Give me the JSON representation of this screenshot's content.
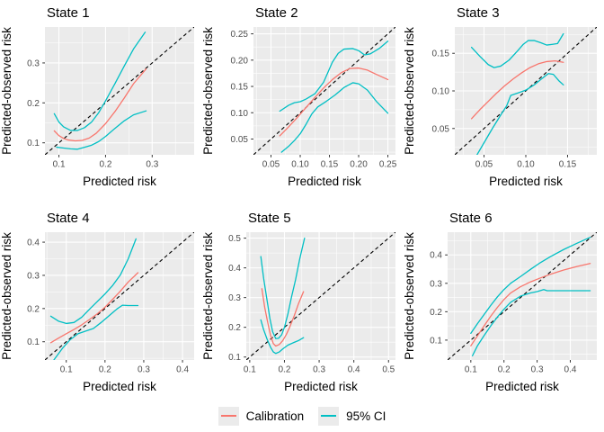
{
  "figure": {
    "panel_background": "#EBEBEB",
    "grid_color": "#FFFFFF",
    "tick_label_color": "#4D4D4D",
    "text_color": "#000000",
    "reference_line": {
      "meaning": "identity y = x",
      "color": "#000000",
      "style": "dashed"
    }
  },
  "legend": {
    "key_background": "#EBEBEB",
    "items": [
      {
        "label": "Calibration",
        "color": "#F8766D"
      },
      {
        "label": "95% CI",
        "color": "#00BFC4"
      }
    ]
  },
  "chart_data": [
    {
      "type": "line",
      "title": "State 1",
      "xlabel": "Predicted risk",
      "ylabel": "Predicted-observed risk",
      "xlim": [
        0.07,
        0.39
      ],
      "ylim": [
        0.07,
        0.39
      ],
      "xticks": [
        0.1,
        0.2,
        0.3
      ],
      "xtick_labels": [
        "0.1",
        "0.2",
        "0.3"
      ],
      "yticks": [
        0.1,
        0.2,
        0.3
      ],
      "ytick_labels": [
        "0.1",
        "0.2",
        "0.3"
      ],
      "identity_line": true,
      "series": [
        {
          "name": "Calibration",
          "color": "#F8766D",
          "x": [
            0.09,
            0.1,
            0.11,
            0.12,
            0.135,
            0.15,
            0.165,
            0.18,
            0.2,
            0.22,
            0.24,
            0.26,
            0.287
          ],
          "y": [
            0.13,
            0.118,
            0.111,
            0.107,
            0.105,
            0.106,
            0.112,
            0.124,
            0.148,
            0.178,
            0.212,
            0.248,
            0.285
          ]
        },
        {
          "name": "95% CI upper",
          "color": "#00BFC4",
          "x": [
            0.09,
            0.1,
            0.11,
            0.125,
            0.14,
            0.155,
            0.17,
            0.185,
            0.2,
            0.22,
            0.24,
            0.26,
            0.285
          ],
          "y": [
            0.173,
            0.152,
            0.14,
            0.131,
            0.131,
            0.138,
            0.152,
            0.175,
            0.205,
            0.248,
            0.292,
            0.335,
            0.377
          ]
        },
        {
          "name": "95% CI lower",
          "color": "#00BFC4",
          "x": [
            0.095,
            0.11,
            0.125,
            0.14,
            0.155,
            0.17,
            0.185,
            0.2,
            0.22,
            0.24,
            0.26,
            0.287
          ],
          "y": [
            0.089,
            0.087,
            0.085,
            0.084,
            0.089,
            0.094,
            0.103,
            0.116,
            0.136,
            0.155,
            0.17,
            0.18
          ]
        }
      ]
    },
    {
      "type": "line",
      "title": "State 2",
      "xlabel": "Predicted risk",
      "ylabel": "Predicted-observed risk",
      "xlim": [
        0.02,
        0.263
      ],
      "ylim": [
        0.02,
        0.263
      ],
      "xticks": [
        0.05,
        0.1,
        0.15,
        0.2,
        0.25
      ],
      "xtick_labels": [
        "0.05",
        "0.10",
        "0.15",
        "0.20",
        "0.25"
      ],
      "yticks": [
        0.05,
        0.1,
        0.15,
        0.2,
        0.25
      ],
      "ytick_labels": [
        "0.05",
        "0.10",
        "0.15",
        "0.20",
        "0.25"
      ],
      "identity_line": true,
      "series": [
        {
          "name": "Calibration",
          "color": "#F8766D",
          "x": [
            0.065,
            0.08,
            0.095,
            0.11,
            0.125,
            0.14,
            0.155,
            0.17,
            0.185,
            0.2,
            0.215,
            0.23,
            0.25
          ],
          "y": [
            0.056,
            0.073,
            0.091,
            0.11,
            0.129,
            0.147,
            0.163,
            0.176,
            0.184,
            0.185,
            0.181,
            0.173,
            0.163
          ]
        },
        {
          "name": "95% CI upper",
          "color": "#00BFC4",
          "x": [
            0.065,
            0.08,
            0.09,
            0.1,
            0.11,
            0.125,
            0.14,
            0.155,
            0.165,
            0.175,
            0.19,
            0.2,
            0.21,
            0.22,
            0.235,
            0.25
          ],
          "y": [
            0.103,
            0.114,
            0.119,
            0.121,
            0.126,
            0.136,
            0.158,
            0.196,
            0.213,
            0.221,
            0.222,
            0.218,
            0.21,
            0.212,
            0.222,
            0.236
          ]
        },
        {
          "name": "95% CI lower",
          "color": "#00BFC4",
          "x": [
            0.068,
            0.08,
            0.09,
            0.1,
            0.11,
            0.12,
            0.13,
            0.145,
            0.16,
            0.175,
            0.19,
            0.2,
            0.215,
            0.23,
            0.25
          ],
          "y": [
            0.025,
            0.036,
            0.047,
            0.06,
            0.078,
            0.098,
            0.111,
            0.122,
            0.134,
            0.148,
            0.157,
            0.155,
            0.143,
            0.122,
            0.099
          ]
        }
      ]
    },
    {
      "type": "line",
      "title": "State 3",
      "xlabel": "Predicted risk",
      "ylabel": "Predicted-observed risk",
      "xlim": [
        0.015,
        0.185
      ],
      "ylim": [
        0.015,
        0.185
      ],
      "xticks": [
        0.05,
        0.1,
        0.15
      ],
      "xtick_labels": [
        "0.05",
        "0.10",
        "0.15"
      ],
      "yticks": [
        0.05,
        0.1,
        0.15
      ],
      "ytick_labels": [
        "0.05",
        "0.10",
        "0.15"
      ],
      "identity_line": true,
      "series": [
        {
          "name": "Calibration",
          "color": "#F8766D",
          "x": [
            0.035,
            0.045,
            0.055,
            0.065,
            0.075,
            0.085,
            0.095,
            0.105,
            0.115,
            0.125,
            0.135,
            0.145
          ],
          "y": [
            0.063,
            0.075,
            0.086,
            0.097,
            0.107,
            0.116,
            0.124,
            0.131,
            0.136,
            0.139,
            0.14,
            0.138
          ]
        },
        {
          "name": "95% CI upper",
          "color": "#00BFC4",
          "x": [
            0.035,
            0.045,
            0.055,
            0.062,
            0.07,
            0.08,
            0.09,
            0.097,
            0.103,
            0.11,
            0.118,
            0.125,
            0.132,
            0.138,
            0.145
          ],
          "y": [
            0.158,
            0.146,
            0.135,
            0.131,
            0.133,
            0.141,
            0.153,
            0.162,
            0.167,
            0.167,
            0.164,
            0.161,
            0.162,
            0.163,
            0.176
          ]
        },
        {
          "name": "95% CI lower",
          "color": "#00BFC4",
          "x": [
            0.04,
            0.05,
            0.06,
            0.07,
            0.077,
            0.082,
            0.09,
            0.1,
            0.11,
            0.12,
            0.127,
            0.133,
            0.14,
            0.145
          ],
          "y": [
            0.012,
            0.031,
            0.05,
            0.068,
            0.08,
            0.094,
            0.097,
            0.101,
            0.108,
            0.117,
            0.123,
            0.122,
            0.113,
            0.108
          ]
        }
      ]
    },
    {
      "type": "line",
      "title": "State 4",
      "xlabel": "Predicted risk",
      "ylabel": "Predicted-observed risk",
      "xlim": [
        0.045,
        0.43
      ],
      "ylim": [
        0.045,
        0.43
      ],
      "xticks": [
        0.1,
        0.2,
        0.3,
        0.4
      ],
      "xtick_labels": [
        "0.1",
        "0.2",
        "0.3",
        "0.4"
      ],
      "yticks": [
        0.1,
        0.2,
        0.3,
        0.4
      ],
      "ytick_labels": [
        "0.1",
        "0.2",
        "0.3",
        "0.4"
      ],
      "identity_line": true,
      "series": [
        {
          "name": "Calibration",
          "color": "#F8766D",
          "x": [
            0.06,
            0.08,
            0.1,
            0.12,
            0.14,
            0.16,
            0.18,
            0.2,
            0.22,
            0.24,
            0.26,
            0.285
          ],
          "y": [
            0.097,
            0.111,
            0.124,
            0.137,
            0.151,
            0.167,
            0.184,
            0.204,
            0.228,
            0.253,
            0.28,
            0.308
          ]
        },
        {
          "name": "95% CI upper",
          "color": "#00BFC4",
          "x": [
            0.06,
            0.08,
            0.1,
            0.12,
            0.14,
            0.16,
            0.18,
            0.2,
            0.22,
            0.24,
            0.26,
            0.28
          ],
          "y": [
            0.177,
            0.162,
            0.155,
            0.158,
            0.174,
            0.198,
            0.221,
            0.244,
            0.27,
            0.302,
            0.35,
            0.41
          ]
        },
        {
          "name": "95% CI lower",
          "color": "#00BFC4",
          "x": [
            0.068,
            0.09,
            0.11,
            0.13,
            0.15,
            0.17,
            0.19,
            0.21,
            0.23,
            0.245,
            0.26,
            0.285
          ],
          "y": [
            0.045,
            0.08,
            0.106,
            0.124,
            0.132,
            0.14,
            0.158,
            0.178,
            0.198,
            0.21,
            0.209,
            0.209
          ]
        }
      ]
    },
    {
      "type": "line",
      "title": "State 5",
      "xlabel": "Predicted risk",
      "ylabel": "Predicted-observed risk",
      "xlim": [
        0.09,
        0.52
      ],
      "ylim": [
        0.09,
        0.52
      ],
      "xticks": [
        0.1,
        0.2,
        0.3,
        0.4,
        0.5
      ],
      "xtick_labels": [
        "0.1",
        "0.2",
        "0.3",
        "0.4",
        "0.5"
      ],
      "yticks": [
        0.1,
        0.2,
        0.3,
        0.4,
        0.5
      ],
      "ytick_labels": [
        "0.1",
        "0.2",
        "0.3",
        "0.4",
        "0.5"
      ],
      "identity_line": true,
      "series": [
        {
          "name": "Calibration",
          "color": "#F8766D",
          "x": [
            0.135,
            0.143,
            0.152,
            0.16,
            0.168,
            0.175,
            0.185,
            0.195,
            0.205,
            0.215,
            0.228,
            0.24,
            0.255
          ],
          "y": [
            0.33,
            0.268,
            0.215,
            0.173,
            0.145,
            0.137,
            0.142,
            0.155,
            0.175,
            0.2,
            0.238,
            0.278,
            0.32
          ]
        },
        {
          "name": "95% CI upper",
          "color": "#00BFC4",
          "x": [
            0.132,
            0.14,
            0.15,
            0.158,
            0.166,
            0.175,
            0.183,
            0.192,
            0.2,
            0.21,
            0.22,
            0.232,
            0.244,
            0.258
          ],
          "y": [
            0.438,
            0.365,
            0.29,
            0.23,
            0.185,
            0.162,
            0.163,
            0.175,
            0.2,
            0.245,
            0.3,
            0.36,
            0.43,
            0.5
          ]
        },
        {
          "name": "95% CI lower",
          "color": "#00BFC4",
          "x": [
            0.132,
            0.14,
            0.15,
            0.16,
            0.168,
            0.175,
            0.185,
            0.195,
            0.21,
            0.225,
            0.24,
            0.255
          ],
          "y": [
            0.225,
            0.192,
            0.16,
            0.133,
            0.117,
            0.112,
            0.117,
            0.127,
            0.14,
            0.148,
            0.155,
            0.165
          ]
        }
      ]
    },
    {
      "type": "line",
      "title": "State 6",
      "xlabel": "Predicted risk",
      "ylabel": "Predicted-observed risk",
      "xlim": [
        0.03,
        0.48
      ],
      "ylim": [
        0.03,
        0.48
      ],
      "xticks": [
        0.1,
        0.2,
        0.3,
        0.4
      ],
      "xtick_labels": [
        "0.1",
        "0.2",
        "0.3",
        "0.4"
      ],
      "yticks": [
        0.1,
        0.2,
        0.3,
        0.4
      ],
      "ytick_labels": [
        "0.1",
        "0.2",
        "0.3",
        "0.4"
      ],
      "identity_line": true,
      "series": [
        {
          "name": "Calibration",
          "color": "#F8766D",
          "x": [
            0.1,
            0.12,
            0.14,
            0.16,
            0.18,
            0.2,
            0.22,
            0.25,
            0.28,
            0.31,
            0.34,
            0.38,
            0.42,
            0.46
          ],
          "y": [
            0.08,
            0.115,
            0.15,
            0.184,
            0.215,
            0.243,
            0.266,
            0.288,
            0.305,
            0.319,
            0.332,
            0.347,
            0.359,
            0.37
          ]
        },
        {
          "name": "95% CI upper",
          "color": "#00BFC4",
          "x": [
            0.1,
            0.12,
            0.14,
            0.16,
            0.18,
            0.2,
            0.22,
            0.25,
            0.28,
            0.31,
            0.34,
            0.38,
            0.42,
            0.46
          ],
          "y": [
            0.124,
            0.158,
            0.19,
            0.222,
            0.252,
            0.278,
            0.3,
            0.324,
            0.349,
            0.373,
            0.394,
            0.419,
            0.441,
            0.462
          ]
        },
        {
          "name": "95% CI lower",
          "color": "#00BFC4",
          "x": [
            0.105,
            0.12,
            0.14,
            0.16,
            0.18,
            0.2,
            0.22,
            0.25,
            0.28,
            0.3,
            0.32,
            0.33,
            0.36,
            0.4,
            0.46
          ],
          "y": [
            0.045,
            0.08,
            0.116,
            0.15,
            0.181,
            0.209,
            0.233,
            0.255,
            0.266,
            0.271,
            0.278,
            0.274,
            0.274,
            0.274,
            0.274
          ]
        }
      ]
    }
  ]
}
